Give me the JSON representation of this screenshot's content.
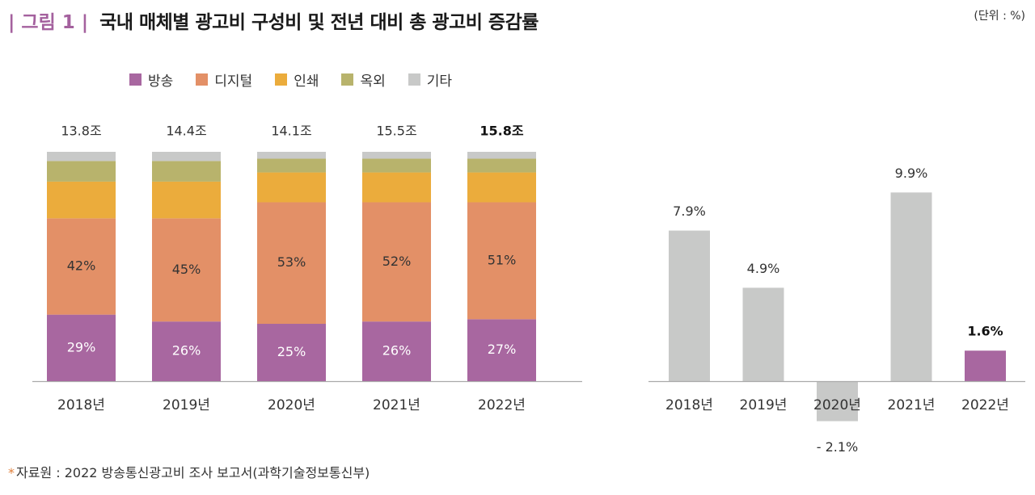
{
  "header": {
    "figure_label": "| 그림 1 |",
    "title": "국내 매체별 광고비 구성비 및 전년 대비 총 광고비 증감률",
    "unit": "(단위 : %)"
  },
  "footer": {
    "star": "*",
    "source": "자료원 : 2022 방송통신광고비 조사 보고서(과학기술정보통신부)"
  },
  "colors": {
    "broadcast": "#a867a0",
    "digital": "#e39067",
    "print": "#ebac3c",
    "outdoor": "#b8b36c",
    "other": "#c8c9c8",
    "growth_default": "#c8c9c8",
    "growth_highlight": "#a867a0",
    "axis": "#aaaaaa",
    "title_accent": "#a4619e",
    "source_star": "#e1803c"
  },
  "chart_data": [
    {
      "type": "bar",
      "stacked": true,
      "title": "매체별 광고비 구성비",
      "categories": [
        "2018년",
        "2019년",
        "2020년",
        "2021년",
        "2022년"
      ],
      "totals": [
        "13.8조",
        "14.4조",
        "14.1조",
        "15.5조",
        "15.8조"
      ],
      "highlight_total_index": 4,
      "ylim": [
        0,
        100
      ],
      "grid": false,
      "legend_position": "top-left",
      "series": [
        {
          "key": "broadcast",
          "name": "방송",
          "values": [
            29,
            26,
            25,
            26,
            27
          ],
          "labeled": true
        },
        {
          "key": "digital",
          "name": "디지털",
          "values": [
            42,
            45,
            53,
            52,
            51
          ],
          "labeled": true
        },
        {
          "key": "print",
          "name": "인쇄",
          "values": [
            16,
            16,
            13,
            13,
            13
          ],
          "labeled": false
        },
        {
          "key": "outdoor",
          "name": "옥외",
          "values": [
            9,
            9,
            6,
            6,
            6
          ],
          "labeled": false
        },
        {
          "key": "other",
          "name": "기타",
          "values": [
            4,
            4,
            3,
            3,
            3
          ],
          "labeled": false
        }
      ]
    },
    {
      "type": "bar",
      "title": "전년 대비 총 광고비 증감률",
      "categories": [
        "2018년",
        "2019년",
        "2020년",
        "2021년",
        "2022년"
      ],
      "values": [
        7.9,
        4.9,
        -2.1,
        9.9,
        1.6
      ],
      "labels": [
        "7.9%",
        "4.9%",
        "- 2.1%",
        "9.9%",
        "1.6%"
      ],
      "highlight_index": 4,
      "ylabel": "%",
      "grid": false
    }
  ]
}
